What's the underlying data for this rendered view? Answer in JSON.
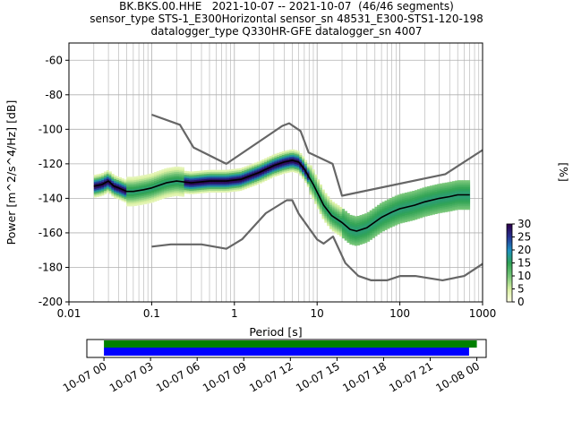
{
  "title_lines": [
    "BK.BKS.00.HHE   2021-10-07 -- 2021-10-07  (46/46 segments)",
    "sensor_type STS-1_E300Horizontal sensor_sn 48531_E300-STS1-120-198",
    "datalogger_type Q330HR-GFE datalogger_sn 4007"
  ],
  "chart_data": [
    {
      "type": "heatmap",
      "xlabel": "Period [s]",
      "ylabel": "Power [m^2/s^4/Hz] [dB]",
      "xscale": "log",
      "xlim": [
        0.01,
        1000
      ],
      "ylim": [
        -200,
        -50
      ],
      "xticks": [
        0.01,
        0.1,
        1,
        10,
        100,
        1000
      ],
      "xtick_labels": [
        "0.01",
        "0.1",
        "1",
        "10",
        "100",
        "1000"
      ],
      "yticks": [
        -200,
        -180,
        -160,
        -140,
        -120,
        -100,
        -80,
        -60
      ],
      "grid": true,
      "colorbar": {
        "label": "[%]",
        "min": 0,
        "max": 30,
        "ticks": [
          0,
          5,
          10,
          15,
          20,
          25,
          30
        ],
        "colors": [
          "#ffffe5",
          "#d9f0a3",
          "#78c679",
          "#31a354",
          "#1d91c0",
          "#253494",
          "#2d004b"
        ]
      },
      "series": [
        {
          "name": "Peterson high noise model",
          "color": "#666666",
          "x": [
            0.1,
            0.22,
            0.32,
            0.8,
            3.8,
            4.6,
            6.3,
            7.9,
            15.4,
            20,
            354.8,
            1000
          ],
          "y": [
            -91.5,
            -97.4,
            -110.5,
            -120,
            -98,
            -96.5,
            -101,
            -113.5,
            -120,
            -138.5,
            -126,
            -112
          ]
        },
        {
          "name": "Peterson low noise model",
          "color": "#666666",
          "x": [
            0.1,
            0.17,
            0.4,
            0.8,
            1.24,
            2.4,
            4.3,
            5,
            6,
            10,
            12,
            15.6,
            21.9,
            31.6,
            45,
            70,
            101,
            154,
            328,
            600,
            1000
          ],
          "y": [
            -168,
            -166.7,
            -166.7,
            -169.2,
            -163.7,
            -148.6,
            -141.1,
            -141.1,
            -149,
            -163.8,
            -166.2,
            -162.1,
            -177.5,
            -185,
            -187.5,
            -187.5,
            -185,
            -185,
            -187.5,
            -185,
            -178
          ]
        },
        {
          "name": "mode",
          "color": "#000000",
          "x": [
            0.02,
            0.025,
            0.03,
            0.035,
            0.04,
            0.05,
            0.06,
            0.08,
            0.1,
            0.15,
            0.2,
            0.3,
            0.5,
            0.8,
            1.2,
            2,
            3,
            4,
            5,
            6,
            7,
            9,
            12,
            15,
            20,
            25,
            30,
            40,
            60,
            80,
            100,
            150,
            200,
            300,
            400,
            500,
            700
          ],
          "y": [
            -133,
            -132,
            -130,
            -133,
            -134,
            -136,
            -136,
            -135,
            -134,
            -131,
            -130,
            -131,
            -130,
            -130,
            -129,
            -125,
            -121,
            -119,
            -118,
            -119,
            -123,
            -132,
            -144,
            -150,
            -154,
            -158,
            -159,
            -157,
            -151,
            -148,
            -146,
            -144,
            -142,
            -140,
            -139,
            -138,
            -138
          ]
        }
      ],
      "time_coverage": {
        "ticks": [
          "10-07 00",
          "10-07 03",
          "10-07 06",
          "10-07 09",
          "10-07 12",
          "10-07 15",
          "10-07 18",
          "10-07 21",
          "10-08 00"
        ],
        "start_hour": 0,
        "end_hour": 24.6,
        "data_range": [
          0,
          24
        ],
        "psd_range": [
          0,
          23.5
        ]
      }
    }
  ]
}
